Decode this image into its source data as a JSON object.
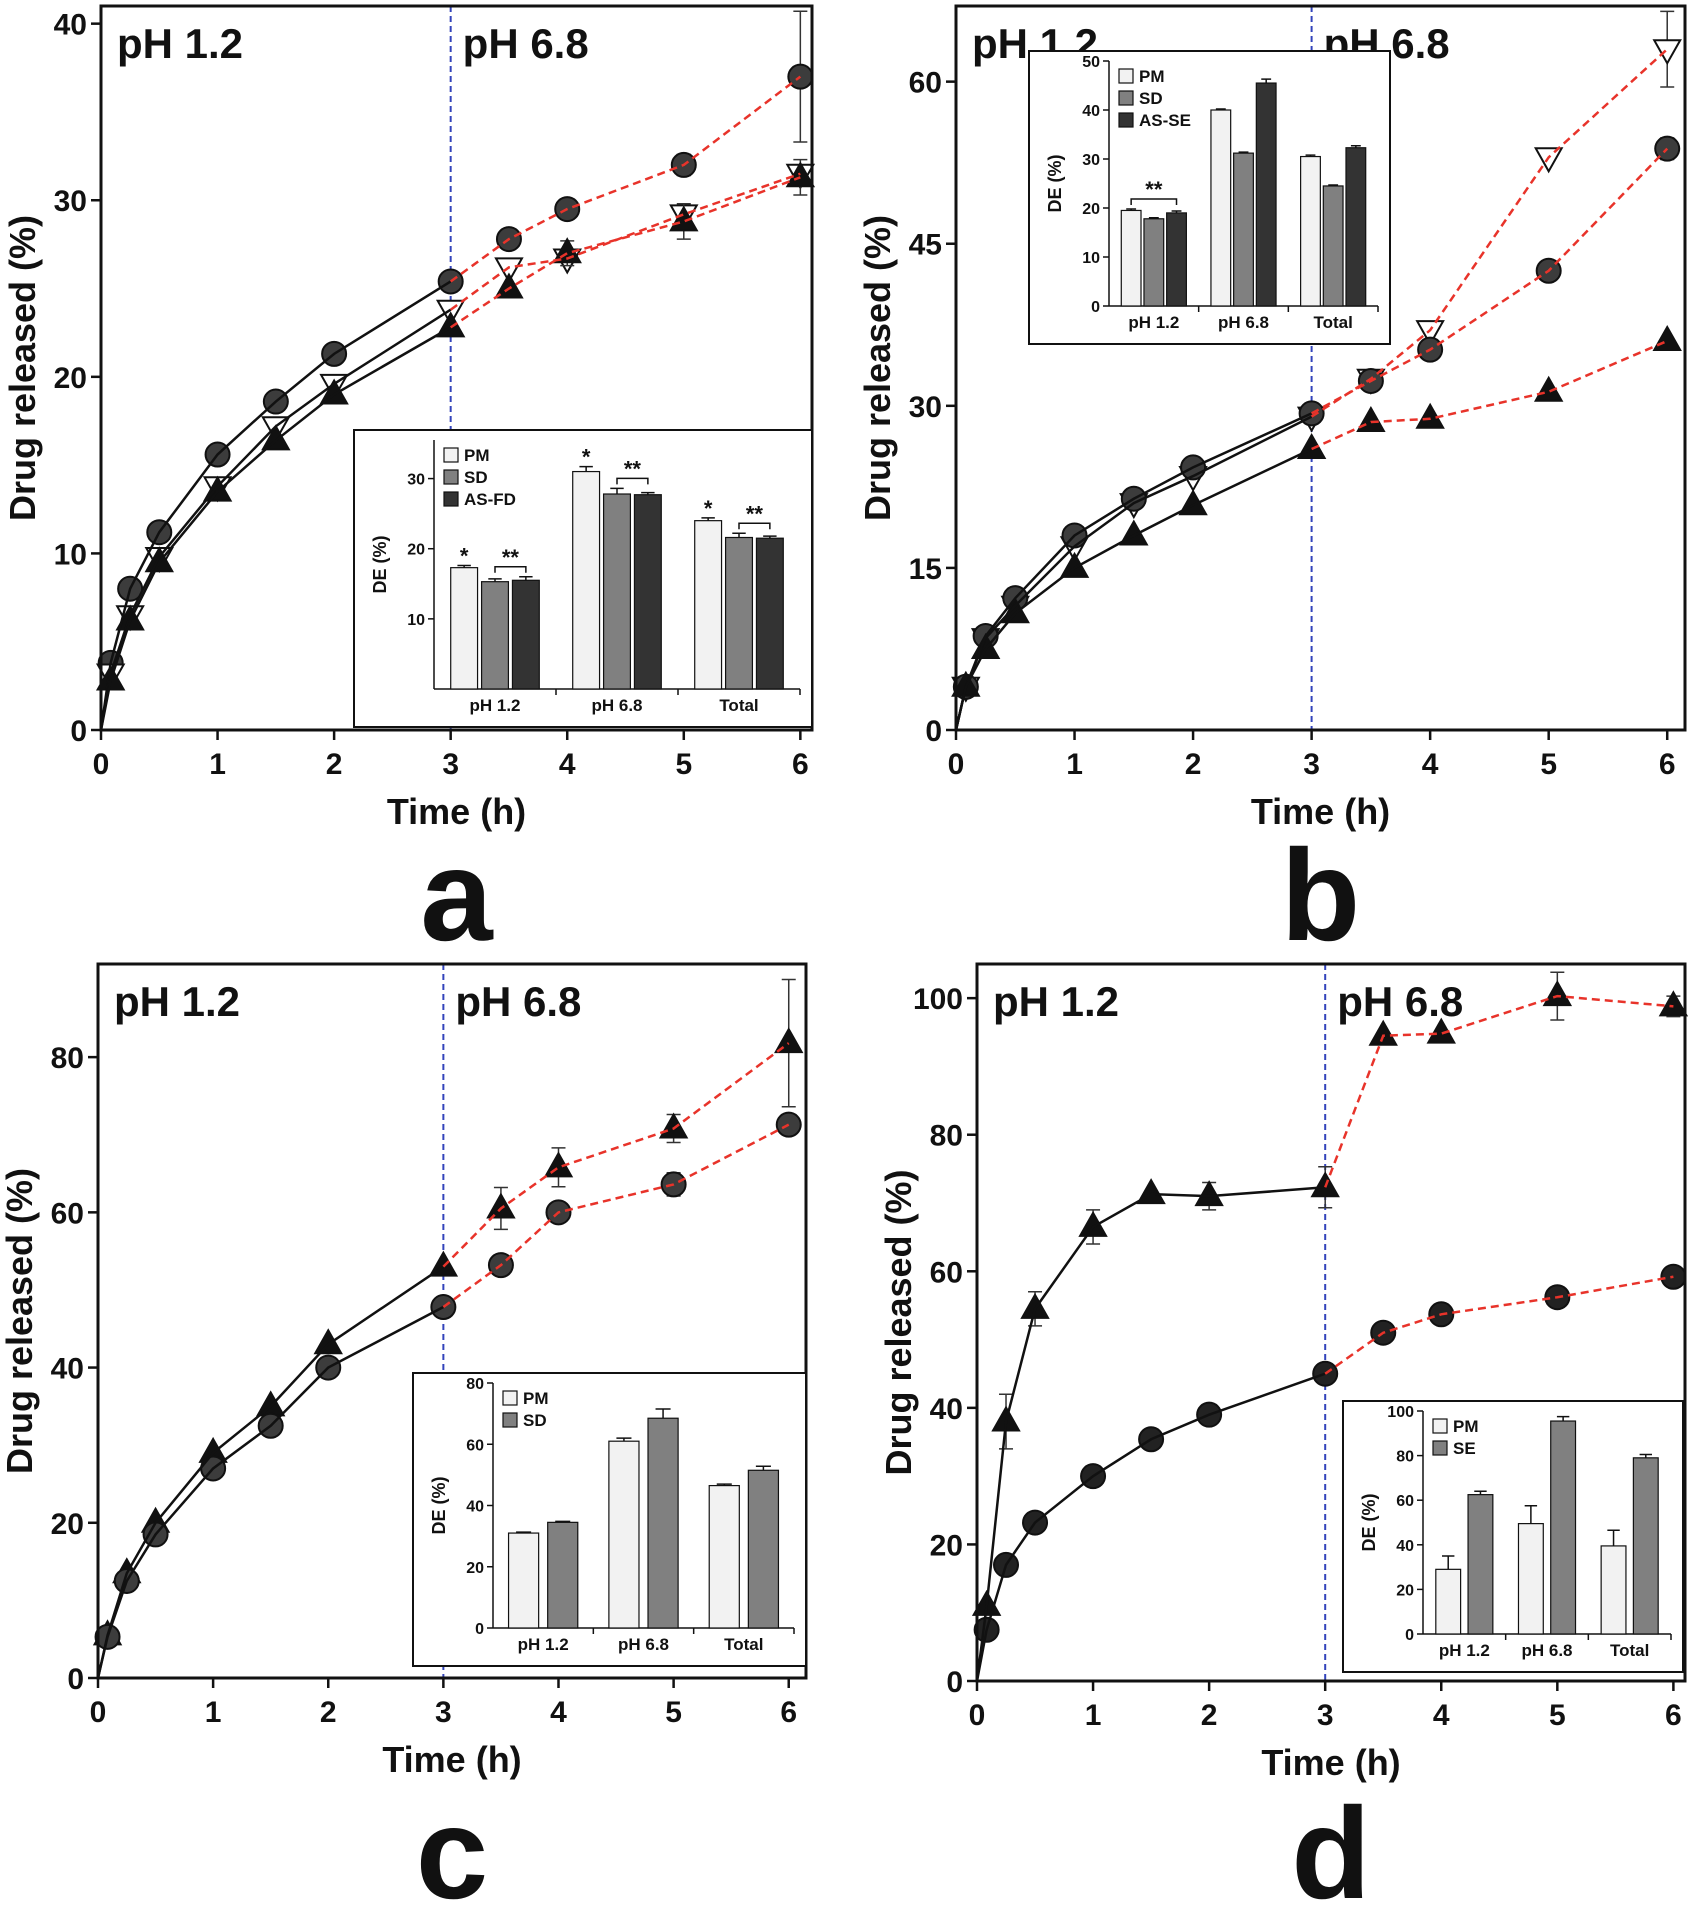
{
  "chart_data": [
    {
      "type": "line",
      "panel_label": "a",
      "xlabel": "Time (h)",
      "ylabel": "Drug released (%)",
      "phase_labels": [
        "pH 1.2",
        "pH 6.8"
      ],
      "divider_x": 3,
      "x": [
        0,
        0.083,
        0.25,
        0.5,
        1,
        1.5,
        2,
        3,
        3.5,
        4,
        5,
        6
      ],
      "xlim": [
        0,
        6.1
      ],
      "xticks": [
        0,
        1,
        2,
        3,
        4,
        5,
        6
      ],
      "ylim": [
        0,
        41
      ],
      "yticks": [
        0,
        10,
        20,
        30,
        40
      ],
      "series": [
        {
          "marker": "circle",
          "color": "#3c3c3c",
          "values": [
            0,
            3.8,
            8,
            11.2,
            15.6,
            18.6,
            21.3,
            25.4,
            27.8,
            29.5,
            32,
            37
          ],
          "errors": [
            null,
            null,
            null,
            null,
            null,
            null,
            null,
            null,
            null,
            null,
            0.6,
            3.7
          ]
        },
        {
          "marker": "triangle-down",
          "color": "#ffffff",
          "values": [
            0,
            3.2,
            6.5,
            9.8,
            13.8,
            17.2,
            19.6,
            23.8,
            26.2,
            26.7,
            29.2,
            31.5
          ],
          "errors": [
            null,
            null,
            null,
            null,
            null,
            null,
            null,
            null,
            null,
            null,
            null,
            null
          ]
        },
        {
          "marker": "triangle-up",
          "color": "#111111",
          "values": [
            0,
            2.8,
            6.2,
            9.5,
            13.5,
            16.4,
            19,
            22.8,
            25,
            27,
            28.8,
            31.3
          ],
          "errors": [
            null,
            null,
            null,
            null,
            null,
            null,
            null,
            null,
            null,
            0.7,
            1.0,
            1.0
          ]
        }
      ],
      "inset": {
        "type": "bar",
        "ylabel": "DE (%)",
        "categories": [
          "pH 1.2",
          "pH 6.8",
          "Total"
        ],
        "ylim": [
          0,
          35.5
        ],
        "yticks": [
          10,
          20,
          30
        ],
        "series": [
          {
            "name": "PM",
            "color": "#f2f2f2",
            "values": [
              17.3,
              31,
              24
            ],
            "errors": [
              0.3,
              0.7,
              0.4
            ],
            "labels": [
              "*",
              "*",
              "*"
            ]
          },
          {
            "name": "SD",
            "color": "#808080",
            "values": [
              15.3,
              27.8,
              21.6
            ],
            "errors": [
              0.4,
              0.8,
              0.6
            ]
          },
          {
            "name": "AS-FD",
            "color": "#333333",
            "values": [
              15.5,
              27.7,
              21.5
            ],
            "errors": [
              0.5,
              0.3,
              0.3
            ]
          }
        ],
        "brackets": [
          {
            "text": "**",
            "series": [
              1,
              2
            ],
            "category": 0
          },
          {
            "text": "**",
            "series": [
              1,
              2
            ],
            "category": 1
          },
          {
            "text": "**",
            "series": [
              1,
              2
            ],
            "category": 2
          }
        ]
      }
    },
    {
      "type": "line",
      "panel_label": "b",
      "xlabel": "Time (h)",
      "ylabel": "Drug released (%)",
      "phase_labels": [
        "pH 1.2",
        "pH 6.8"
      ],
      "divider_x": 3,
      "x": [
        0,
        0.083,
        0.25,
        0.5,
        1,
        1.5,
        2,
        3,
        3.5,
        4,
        5,
        6
      ],
      "xlim": [
        0,
        6.15
      ],
      "xticks": [
        0,
        1,
        2,
        3,
        4,
        5,
        6
      ],
      "ylim": [
        0,
        67
      ],
      "yticks": [
        0,
        15,
        30,
        45,
        60
      ],
      "series": [
        {
          "marker": "triangle-down",
          "color": "#ffffff",
          "values": [
            0,
            4,
            8.5,
            11.5,
            17,
            21,
            23.5,
            29,
            32.5,
            37,
            53,
            63
          ],
          "errors": [
            null,
            null,
            null,
            null,
            null,
            null,
            null,
            null,
            null,
            null,
            null,
            3.5
          ]
        },
        {
          "marker": "circle",
          "color": "#3c3c3c",
          "values": [
            0,
            4,
            8.7,
            12.2,
            18,
            21.4,
            24.3,
            29.3,
            32.3,
            35.2,
            42.5,
            53.8
          ],
          "errors": [
            null,
            null,
            null,
            null,
            null,
            null,
            null,
            null,
            null,
            null,
            null,
            1.0
          ]
        },
        {
          "marker": "triangle-up",
          "color": "#111111",
          "values": [
            0,
            4,
            7.5,
            10.8,
            15,
            18,
            20.8,
            26,
            28.5,
            28.8,
            31.3,
            36
          ],
          "errors": [
            null,
            null,
            null,
            null,
            null,
            null,
            null,
            null,
            null,
            null,
            null,
            null
          ]
        }
      ],
      "inset": {
        "type": "bar",
        "ylabel": "DE (%)",
        "categories": [
          "pH 1.2",
          "pH 6.8",
          "Total"
        ],
        "ylim": [
          0,
          50
        ],
        "yticks": [
          0,
          10,
          20,
          30,
          40,
          50
        ],
        "series": [
          {
            "name": "PM",
            "color": "#f2f2f2",
            "values": [
              19.5,
              40,
              30.5
            ],
            "errors": [
              0.3,
              0.2,
              0.3
            ]
          },
          {
            "name": "SD",
            "color": "#808080",
            "values": [
              17.8,
              31.2,
              24.5
            ],
            "errors": [
              0.2,
              0.2,
              0.2
            ]
          },
          {
            "name": "AS-SE",
            "color": "#333333",
            "values": [
              19,
              45.5,
              32.3
            ],
            "errors": [
              0.4,
              0.8,
              0.4
            ]
          }
        ],
        "brackets": [
          {
            "text": "**",
            "series": [
              0,
              2
            ],
            "category": 0
          }
        ]
      }
    },
    {
      "type": "line",
      "panel_label": "c",
      "xlabel": "Time (h)",
      "ylabel": "Drug released (%)",
      "phase_labels": [
        "pH 1.2",
        "pH 6.8"
      ],
      "divider_x": 3,
      "x": [
        0,
        0.083,
        0.25,
        0.5,
        1,
        1.5,
        2,
        3,
        3.5,
        4,
        5,
        6
      ],
      "xlim": [
        0,
        6.15
      ],
      "xticks": [
        0,
        1,
        2,
        3,
        4,
        5,
        6
      ],
      "ylim": [
        0,
        92
      ],
      "yticks": [
        0,
        20,
        40,
        60,
        80
      ],
      "series": [
        {
          "marker": "triangle-up",
          "color": "#111111",
          "values": [
            0,
            5.5,
            13.5,
            20,
            29,
            35,
            43,
            53,
            60.5,
            65.8,
            70.8,
            81.8
          ],
          "errors": [
            null,
            null,
            null,
            null,
            null,
            null,
            null,
            null,
            2.7,
            2.5,
            1.8,
            8.2
          ]
        },
        {
          "marker": "circle",
          "color": "#3c3c3c",
          "values": [
            0,
            5.3,
            12.5,
            18.5,
            27,
            32.5,
            40,
            47.8,
            53.2,
            60,
            63.6,
            71.3
          ],
          "errors": [
            null,
            null,
            null,
            null,
            null,
            null,
            null,
            null,
            null,
            null,
            1.5,
            null
          ]
        }
      ],
      "inset": {
        "type": "bar",
        "ylabel": "DE (%)",
        "categories": [
          "pH 1.2",
          "pH 6.8",
          "Total"
        ],
        "ylim": [
          0,
          80
        ],
        "yticks": [
          0,
          20,
          40,
          60,
          80
        ],
        "series": [
          {
            "name": "PM",
            "color": "#f2f2f2",
            "values": [
              31,
              61,
              46.5
            ],
            "errors": [
              0.3,
              1,
              0.5
            ]
          },
          {
            "name": "SD",
            "color": "#808080",
            "values": [
              34.5,
              68.5,
              51.5
            ],
            "errors": [
              0.3,
              3,
              1.3
            ]
          }
        ]
      }
    },
    {
      "type": "line",
      "panel_label": "d",
      "xlabel": "Time (h)",
      "ylabel": "Drug released (%)",
      "phase_labels": [
        "pH 1.2",
        "pH 6.8"
      ],
      "divider_x": 3,
      "x": [
        0,
        0.083,
        0.25,
        0.5,
        1,
        1.5,
        2,
        3,
        3.5,
        4,
        5,
        6
      ],
      "xlim": [
        0,
        6.1
      ],
      "xticks": [
        0,
        1,
        2,
        3,
        4,
        5,
        6
      ],
      "ylim": [
        0,
        105
      ],
      "yticks": [
        0,
        20,
        40,
        60,
        80,
        100
      ],
      "series": [
        {
          "marker": "triangle-up",
          "color": "#111111",
          "values": [
            0,
            11,
            38,
            54.5,
            66.5,
            71.3,
            71,
            72.3,
            94.5,
            94.8,
            100.3,
            98.8
          ],
          "errors": [
            null,
            null,
            4,
            2.5,
            2.5,
            null,
            2,
            3,
            null,
            null,
            3.5,
            1.5
          ]
        },
        {
          "marker": "circle",
          "color": "#222222",
          "values": [
            0,
            7.5,
            17,
            23.2,
            30,
            35.4,
            39,
            45,
            51,
            53.7,
            56.2,
            59.2
          ],
          "errors": [
            null,
            null,
            null,
            null,
            null,
            null,
            null,
            null,
            null,
            null,
            null,
            null
          ]
        }
      ],
      "inset": {
        "type": "bar",
        "ylabel": "DE (%)",
        "categories": [
          "pH 1.2",
          "pH 6.8",
          "Total"
        ],
        "ylim": [
          0,
          100
        ],
        "yticks": [
          0,
          20,
          40,
          60,
          80,
          100
        ],
        "series": [
          {
            "name": "PM",
            "color": "#f2f2f2",
            "values": [
              29,
              49.5,
              39.5
            ],
            "errors": [
              6,
              8,
              7
            ]
          },
          {
            "name": "SE",
            "color": "#808080",
            "values": [
              62.5,
              95.5,
              79
            ],
            "errors": [
              1.5,
              2,
              1.5
            ]
          }
        ]
      }
    }
  ]
}
